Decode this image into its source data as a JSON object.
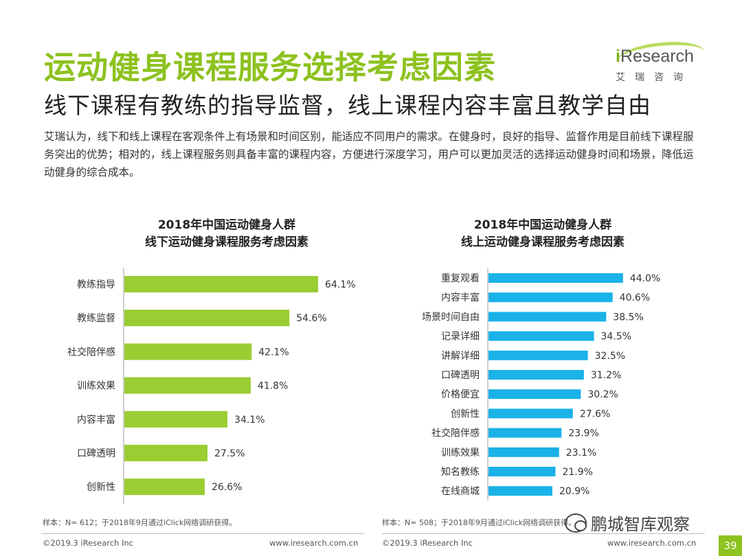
{
  "title": "运动健身课程服务选择考虑因素",
  "subtitle": "线下课程有教练的指导监督，线上课程内容丰富且教学自由",
  "description": "艾瑞认为，线下和线上课程在客观条件上有场景和时间区别，能适应不同用户的需求。在健身时，良好的指导、监督作用是目前线下课程服务突出的优势；相对的，线上课程服务则具备丰富的课程内容，方便进行深度学习，用户可以更加灵活的选择运动健身时间和场景，降低运动健身的综合成本。",
  "logo": {
    "brand": "iResearch",
    "brand_cn": "艾瑞咨询",
    "i": "i",
    "rest": "Research"
  },
  "colors": {
    "accent": "#8dc21f",
    "offline_bar": "#9acd32",
    "online_bar": "#1ab2e8"
  },
  "chart_data": [
    {
      "type": "bar",
      "orientation": "horizontal",
      "title_line1": "2018年中国运动健身人群",
      "title_line2": "线下运动健身课程服务考虑因素",
      "categories": [
        "教练指导",
        "教练监督",
        "社交陪伴感",
        "训练效果",
        "内容丰富",
        "口碑透明",
        "创新性"
      ],
      "values": [
        64.1,
        54.6,
        42.1,
        41.8,
        34.1,
        27.5,
        26.6
      ],
      "labels": [
        "64.1%",
        "54.6%",
        "42.1%",
        "41.8%",
        "34.1%",
        "27.5%",
        "26.6%"
      ],
      "unit": "%",
      "xlim": [
        0,
        100
      ],
      "color": "#9acd32",
      "note": "样本：N= 612；于2018年9月通过iClick网络调研获得。"
    },
    {
      "type": "bar",
      "orientation": "horizontal",
      "title_line1": "2018年中国运动健身人群",
      "title_line2": "线上运动健身课程服务考虑因素",
      "categories": [
        "重复观看",
        "内容丰富",
        "场景时间自由",
        "记录详细",
        "讲解详细",
        "口碑透明",
        "价格便宜",
        "创新性",
        "社交陪伴感",
        "训练效果",
        "知名教练",
        "在线商城"
      ],
      "values": [
        44.0,
        40.6,
        38.5,
        34.5,
        32.5,
        31.2,
        30.2,
        27.6,
        23.9,
        23.1,
        21.9,
        20.9
      ],
      "labels": [
        "44.0%",
        "40.6%",
        "38.5%",
        "34.5%",
        "32.5%",
        "31.2%",
        "30.2%",
        "27.6%",
        "23.9%",
        "23.1%",
        "21.9%",
        "20.9%"
      ],
      "unit": "%",
      "xlim": [
        0,
        100
      ],
      "color": "#1ab2e8",
      "note": "样本：N= 508；于2018年9月通过iClick网络调研获得。"
    }
  ],
  "footer": {
    "left_copyright": "©2019.3  iResearch Inc",
    "left_url": "www.iresearch.com.cn",
    "right_copyright": "©2019.3  iResearch Inc",
    "right_url": "www.iresearch.com.cn",
    "watermark": "鹏城智库观察",
    "page_number": "39"
  }
}
